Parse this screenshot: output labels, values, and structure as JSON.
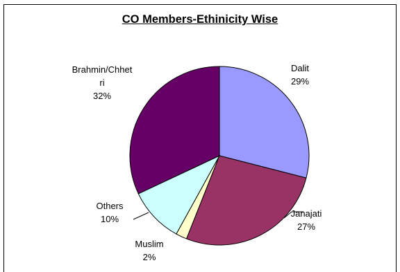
{
  "chart_data": {
    "type": "pie",
    "title": "CO Members-Ethinicity Wise",
    "slices": [
      {
        "label": "Dalit",
        "value": 29,
        "display": "29%",
        "color": "#9999ff"
      },
      {
        "label": "Janajati",
        "value": 27,
        "display": "27%",
        "color": "#993366"
      },
      {
        "label": "Muslim",
        "value": 2,
        "display": "2%",
        "color": "#ffffcc"
      },
      {
        "label": "Others",
        "value": 10,
        "display": "10%",
        "color": "#ccffff"
      },
      {
        "label": "Brahmin/Chhetri",
        "value": 32,
        "display": "32%",
        "color": "#660066",
        "label_lines": [
          "Brahmin/Chhet",
          "ri"
        ]
      }
    ]
  }
}
